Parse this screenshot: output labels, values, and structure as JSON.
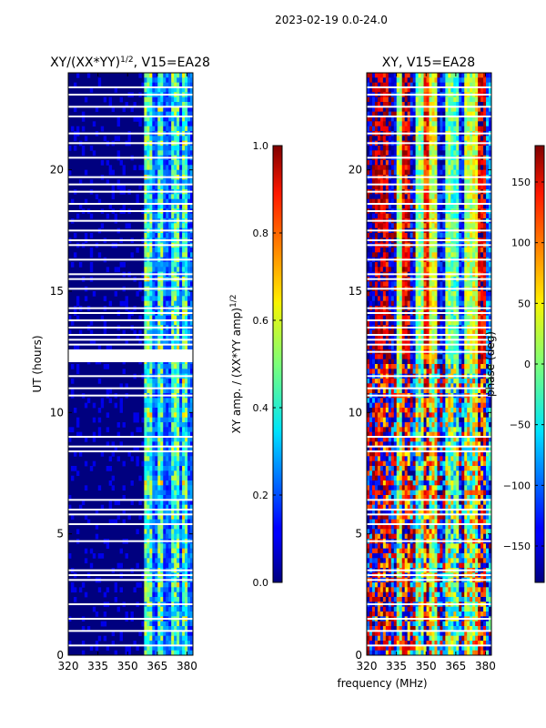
{
  "figure": {
    "suptitle": "2023-02-19 0.0-24.0",
    "xlabel": "frequency (MHz)"
  },
  "chart_data": [
    {
      "type": "heatmap",
      "title": "XY/(XX*YY)",
      "title_exponent": "1/2",
      "title_suffix": ", V15=EA28",
      "xlabel": "",
      "ylabel": "UT (hours)",
      "x_ticks": [
        320,
        335,
        350,
        365,
        380
      ],
      "y_ticks": [
        0,
        5,
        10,
        15,
        20
      ],
      "xlim": [
        320,
        383
      ],
      "ylim": [
        0,
        24
      ],
      "colormap": "jet",
      "colorbar": {
        "label": "XY amp. / (XX*YY amp)",
        "label_exponent": "1/2",
        "ticks": [
          "0.0",
          "0.2",
          "0.4",
          "0.6",
          "0.8",
          "1.0"
        ],
        "range": [
          0,
          1
        ]
      },
      "bright_channels_mhz": [
        [
          359,
          362
        ],
        [
          365,
          368
        ],
        [
          372,
          376
        ],
        [
          377,
          380
        ]
      ]
    },
    {
      "type": "heatmap",
      "title": "XY, V15=EA28",
      "xlabel": "",
      "ylabel": "",
      "x_ticks": [
        320,
        335,
        350,
        365,
        380
      ],
      "y_ticks": [
        0,
        5,
        10,
        15,
        20
      ],
      "xlim": [
        320,
        383
      ],
      "ylim": [
        0,
        24
      ],
      "colormap": "jet",
      "colorbar": {
        "label": "phase (deg)",
        "ticks": [
          "150",
          "100",
          "50",
          "0",
          "−50",
          "−100",
          "−150"
        ],
        "range": [
          -180,
          180
        ]
      }
    }
  ],
  "flagged_ut_hours": [
    0.4,
    1.0,
    1.5,
    2.1,
    3.1,
    3.3,
    3.5,
    4.7,
    5.4,
    5.8,
    6.0,
    6.4,
    8.4,
    8.6,
    9.0,
    10.7,
    11.0,
    11.5,
    12.5,
    12.8,
    13.0,
    13.2,
    13.5,
    13.8,
    14.1,
    14.3,
    15.1,
    15.5,
    15.7,
    16.3,
    16.9,
    17.1,
    17.5,
    17.9,
    18.3,
    18.6,
    19.1,
    19.4,
    19.7,
    20.5,
    21.1,
    21.5,
    22.2,
    22.6,
    23.1,
    23.4
  ]
}
